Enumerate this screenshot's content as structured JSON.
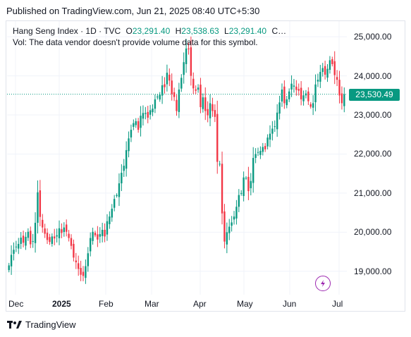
{
  "header": {
    "published": "Published on TradingView.com, Jun 21, 2025 08:40 UTC+5:30"
  },
  "legend": {
    "symbol": "Hang Seng Index · 1D · TVC",
    "o_label": "O",
    "o_value": "23,291.40",
    "h_label": "H",
    "h_value": "23,538.63",
    "l_label": "L",
    "l_value": "23,291.40",
    "c_label": "C…",
    "volume_note": "Vol: The data vendor doesn't provide volume data for this symbol."
  },
  "last_price": "23,530.49",
  "footer": {
    "brand": "TradingView",
    "logo_icon": "tradingview-logo-icon"
  },
  "colors": {
    "up": "#089981",
    "down": "#f23645",
    "grid": "#f0f3fa",
    "events": "#9c27b0"
  },
  "chart_data": {
    "type": "candlestick",
    "timeframe": "1D",
    "ylim": [
      18400,
      25400
    ],
    "y_ticks": [
      "25,000.00",
      "24,000.00",
      "23,000.00",
      "22,000.00",
      "21,000.00",
      "20,000.00",
      "19,000.00"
    ],
    "y_tick_values": [
      25000,
      24000,
      23000,
      22000,
      21000,
      20000,
      19000
    ],
    "x_ticks": [
      "Dec",
      "2025",
      "Feb",
      "Mar",
      "Apr",
      "May",
      "Jun",
      "Jul"
    ],
    "last_price_value": 23530.49,
    "closes": [
      19150,
      19420,
      19550,
      19630,
      19700,
      19860,
      19730,
      19880,
      20010,
      19690,
      19770,
      20240,
      21020,
      20390,
      20120,
      19960,
      19800,
      19750,
      19890,
      19840,
      19920,
      20100,
      19980,
      20120,
      20010,
      19850,
      19650,
      19350,
      19230,
      19060,
      18910,
      18880,
      19130,
      19460,
      19850,
      20010,
      19920,
      19810,
      19950,
      20060,
      19890,
      20280,
      20400,
      20600,
      20850,
      20950,
      21250,
      21520,
      21700,
      22100,
      22400,
      22620,
      22790,
      22840,
      22620,
      22980,
      23050,
      23050,
      22930,
      23120,
      23160,
      23400,
      23470,
      23520,
      23760,
      23710,
      24080,
      23880,
      23530,
      23460,
      23100,
      23650,
      23950,
      24350,
      24700,
      24680,
      24000,
      23680,
      23620,
      23700,
      23200,
      23450,
      23100,
      22990,
      23300,
      23100,
      22950,
      21800,
      21750,
      20480,
      19760,
      20000,
      20140,
      20250,
      20400,
      20650,
      20950,
      21000,
      21400,
      21390,
      21050,
      21310,
      21900,
      22000,
      22050,
      22080,
      22180,
      22120,
      22420,
      22520,
      22650,
      22710,
      23060,
      23320,
      23650,
      23300,
      23400,
      23600,
      23800,
      23750,
      23640,
      23620,
      23400,
      23500,
      23550,
      23350,
      23210,
      23300,
      23780,
      23900,
      24100,
      24200,
      24030,
      24180,
      24400,
      24300,
      24020,
      23900,
      23500,
      23300,
      23530
    ],
    "candles": [
      {
        "x": "Dec",
        "o": 19150,
        "h": 19500,
        "l": 19050,
        "c": 19450
      },
      {
        "x": "Jan",
        "o": 20100,
        "h": 20500,
        "l": 18700,
        "c": 18900
      },
      {
        "x": "Feb",
        "o": 19850,
        "h": 23100,
        "l": 19600,
        "c": 22900
      },
      {
        "x": "Mar",
        "o": 22900,
        "h": 24800,
        "l": 22400,
        "c": 23100
      },
      {
        "x": "Apr",
        "o": 23100,
        "h": 23200,
        "l": 19300,
        "c": 22100
      },
      {
        "x": "May",
        "o": 22100,
        "h": 23900,
        "l": 21800,
        "c": 23300
      },
      {
        "x": "Jun",
        "o": 23300,
        "h": 24450,
        "l": 22700,
        "c": 23530
      }
    ]
  }
}
